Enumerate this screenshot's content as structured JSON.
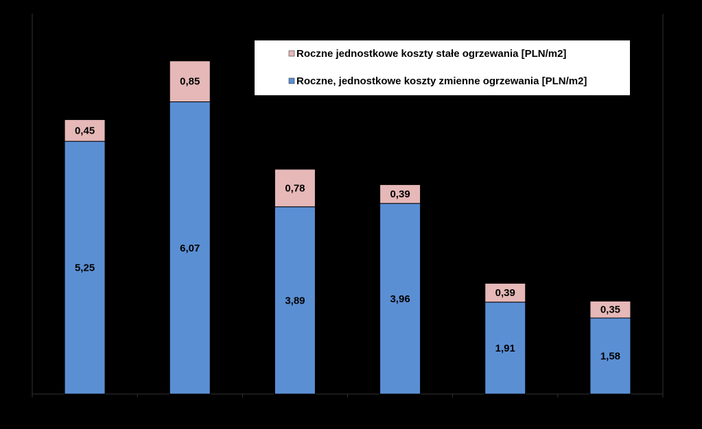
{
  "chart_data": {
    "type": "bar",
    "stacked": true,
    "categories": [
      "",
      "",
      "",
      "",
      "",
      ""
    ],
    "series": [
      {
        "name": "Roczne, jednostkowe koszty zmienne ogrzewania [PLN/m2]",
        "values": [
          5.25,
          6.07,
          3.89,
          3.96,
          1.91,
          1.58
        ],
        "labels": [
          "5,25",
          "6,07",
          "3,89",
          "3,96",
          "1,91",
          "1,58"
        ],
        "color": "#5B8FD4"
      },
      {
        "name": "Roczne jednostkowe koszty stałe ogrzewania [PLN/m2]",
        "values": [
          0.45,
          0.85,
          0.78,
          0.39,
          0.39,
          0.35
        ],
        "labels": [
          "0,45",
          "0,85",
          "0,78",
          "0,39",
          "0,39",
          "0,35"
        ],
        "color": "#E6B8B8"
      }
    ],
    "ylim": [
      0,
      7.9
    ],
    "grid": false,
    "legend": {
      "position": "top-right",
      "entries": [
        {
          "label": "Roczne jednostkowe koszty stałe ogrzewania [PLN/m2]",
          "color": "#E6B8B8"
        },
        {
          "label": "Roczne, jednostkowe koszty zmienne ogrzewania [PLN/m2]",
          "color": "#5B8FD4"
        }
      ]
    },
    "colors": {
      "background": "#000000",
      "axis": "#333333",
      "legend_bg": "#FFFFFF"
    }
  }
}
